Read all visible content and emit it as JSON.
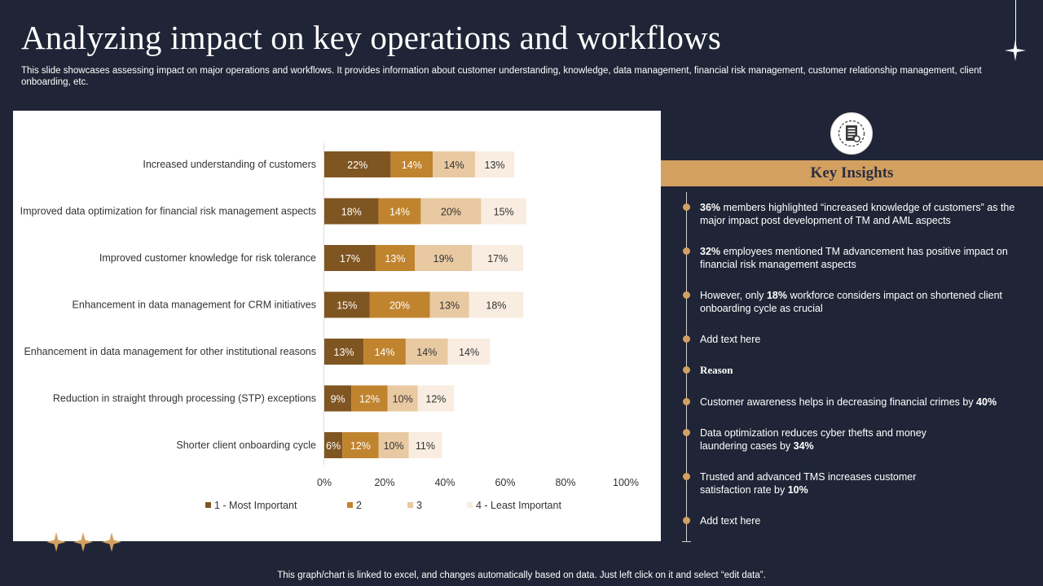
{
  "header": {
    "title": "Analyzing impact on key operations and workflows",
    "subtitle": "This slide showcases assessing impact on major operations and workflows. It provides information about customer understanding, knowledge, data management, financial risk management, customer relationship management, client onboarding, etc."
  },
  "chart_data": {
    "type": "bar",
    "orientation": "horizontal",
    "stacked": true,
    "categories": [
      "Increased understanding  of customers",
      "Improved data optimization for financial risk management aspects",
      "Improved customer knowledge for risk tolerance",
      "Enhancement in data management for CRM initiatives",
      "Enhancement in data management for other institutional reasons",
      "Reduction in straight through processing (STP) exceptions",
      "Shorter client onboarding cycle"
    ],
    "series": [
      {
        "name": "1 - Most Important",
        "values": [
          22,
          18,
          17,
          15,
          13,
          9,
          6
        ],
        "color": "#7f5522"
      },
      {
        "name": "2",
        "values": [
          14,
          14,
          13,
          20,
          14,
          12,
          12
        ],
        "color": "#c0842f"
      },
      {
        "name": "3",
        "values": [
          14,
          20,
          19,
          13,
          14,
          10,
          10
        ],
        "color": "#e8c9a1"
      },
      {
        "name": "4 - Least Important",
        "values": [
          13,
          15,
          17,
          18,
          14,
          12,
          11
        ],
        "color": "#f8ede0"
      }
    ],
    "value_suffix": "%",
    "xlim": [
      0,
      100
    ],
    "x_ticks": [
      "0%",
      "20%",
      "40%",
      "60%",
      "80%",
      "100%"
    ],
    "legend_position": "bottom",
    "grid": false
  },
  "insights": {
    "heading": "Key Insights",
    "items": [
      {
        "bold": "36%",
        "text": " members highlighted “increased knowledge of customers” as the major impact post development  of TM and AML aspects"
      },
      {
        "bold": "32%",
        "text": " employees mentioned TM advancement  has positive impact on financial risk management  aspects"
      },
      {
        "pre": "However,  only ",
        "bold": "18%",
        "text": " workforce considers impact on shortened client onboarding cycle as crucial"
      },
      {
        "text": "Add text here"
      }
    ],
    "reason_label": "Reason",
    "reasons": [
      {
        "pre": "Customer awareness  helps in decreasing financial crimes by ",
        "bold": "40%"
      },
      {
        "pre": "Data optimization reduces cyber thefts and money laundering cases by ",
        "bold": "34%"
      },
      {
        "pre": "Trusted and advanced  TMS increases customer satisfaction rate by ",
        "bold": "10%"
      },
      {
        "pre": "Add text here"
      }
    ]
  },
  "footer": {
    "note": "This graph/chart is linked to excel,  and changes automatically based on data. Just left click on it and select “edit data”."
  },
  "colors": {
    "background": "#1f2536",
    "accent": "#d4a060"
  }
}
